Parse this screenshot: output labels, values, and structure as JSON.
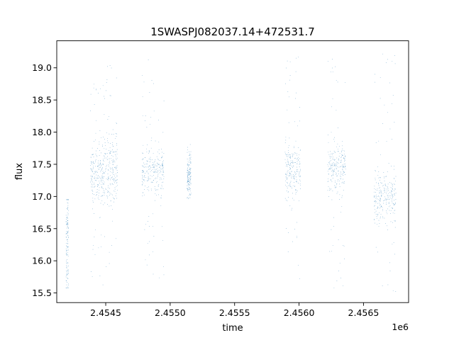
{
  "chart_data": {
    "type": "scatter",
    "title": "1SWASPJ082037.14+472531.7",
    "xlabel": "time",
    "ylabel": "flux",
    "x_offset_label": "1e6",
    "xlim": [
      2.45412,
      2.45685
    ],
    "ylim": [
      15.35,
      19.42
    ],
    "x_ticks": [
      2.4545,
      2.455,
      2.4555,
      2.456,
      2.4565
    ],
    "x_tick_labels": [
      "2.4545",
      "2.4550",
      "2.4555",
      "2.4560",
      "2.4565"
    ],
    "y_ticks": [
      15.5,
      16.0,
      16.5,
      17.0,
      17.5,
      18.0,
      18.5,
      19.0
    ],
    "y_tick_labels": [
      "15.5",
      "16.0",
      "16.5",
      "17.0",
      "17.5",
      "18.0",
      "18.5",
      "19.0"
    ],
    "grid": false,
    "marker_color": "#1f77b4",
    "series": [
      {
        "observing_seasons": [
          {
            "x_range": [
              2.45419,
              2.45421
            ],
            "y_median": 16.3,
            "y_spread": 0.45,
            "y_range": [
              15.58,
              16.95
            ]
          },
          {
            "x_range": [
              2.45438,
              2.45448
            ],
            "y_median": 17.35,
            "y_spread": 0.22,
            "y_range": [
              15.6,
              18.85
            ]
          },
          {
            "x_range": [
              2.45448,
              2.45459
            ],
            "y_median": 17.4,
            "y_spread": 0.25,
            "y_range": [
              15.8,
              19.15
            ]
          },
          {
            "x_range": [
              2.45478,
              2.45495
            ],
            "y_median": 17.4,
            "y_spread": 0.18,
            "y_range": [
              15.6,
              19.18
            ]
          },
          {
            "x_range": [
              2.45513,
              2.45516
            ],
            "y_median": 17.35,
            "y_spread": 0.15,
            "y_range": [
              16.95,
              17.82
            ]
          },
          {
            "x_range": [
              2.45589,
              2.45601
            ],
            "y_median": 17.4,
            "y_spread": 0.2,
            "y_range": [
              15.52,
              19.22
            ]
          },
          {
            "x_range": [
              2.45622,
              2.45636
            ],
            "y_median": 17.45,
            "y_spread": 0.2,
            "y_range": [
              15.55,
              19.25
            ]
          },
          {
            "x_range": [
              2.45658,
              2.45675
            ],
            "y_median": 17.0,
            "y_spread": 0.2,
            "y_range": [
              15.52,
              19.22
            ]
          }
        ]
      }
    ]
  }
}
